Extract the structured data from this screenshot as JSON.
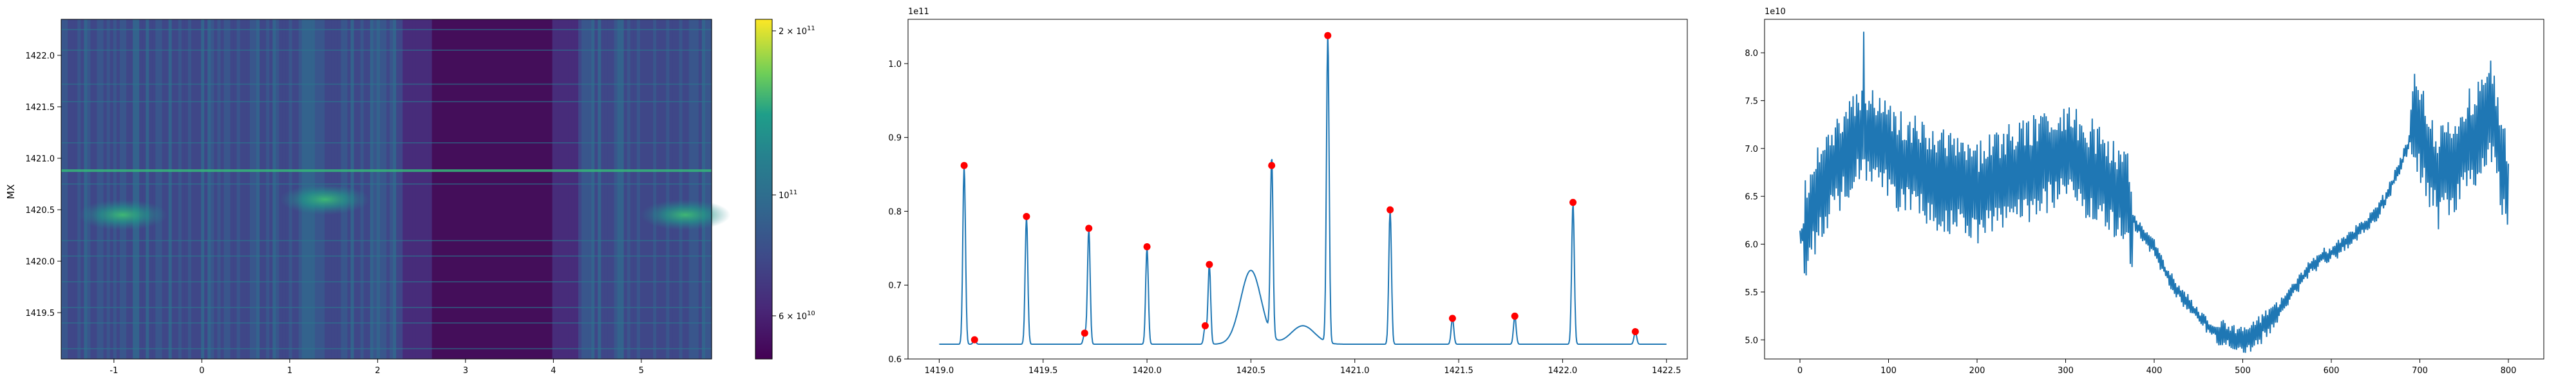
{
  "chart_data": [
    {
      "type": "heatmap",
      "ylabel": "MX",
      "xlim": [
        -1.6,
        5.8
      ],
      "ylim": [
        1419.05,
        1422.35
      ],
      "x_ticks": [
        "-1",
        "0",
        "1",
        "2",
        "3",
        "4",
        "5"
      ],
      "y_ticks": [
        "1419.5",
        "1420.0",
        "1420.5",
        "1421.0",
        "1421.5",
        "1422.0"
      ],
      "colormap": "viridis",
      "color_scale": "log",
      "colorbar_ticks": [
        "2 × 10",
        "10",
        "6 × 10"
      ],
      "colorbar_tick_exponents": [
        "11",
        "11",
        "10"
      ],
      "colorbar_range": [
        50000000000,
        210000000000
      ],
      "dark_band_x": [
        2.3,
        4.3
      ],
      "bright_spots": [
        {
          "x": -0.9,
          "y": 1420.45
        },
        {
          "x": 1.4,
          "y": 1420.6
        },
        {
          "x": 5.5,
          "y": 1420.45
        }
      ],
      "bright_row_y": 1420.88
    },
    {
      "type": "line",
      "offset_label": "1e11",
      "xlim": [
        1418.85,
        1422.6
      ],
      "ylim": [
        0.6,
        1.06
      ],
      "x_ticks": [
        "1419.0",
        "1419.5",
        "1420.0",
        "1420.5",
        "1421.0",
        "1421.5",
        "1422.0",
        "1422.5"
      ],
      "y_ticks": [
        "0.6",
        "0.7",
        "0.8",
        "0.9",
        "1.0"
      ],
      "line_color": "#1f77b4",
      "marker_color": "#ff0000",
      "baseline": 0.62,
      "peaks": [
        {
          "x": 1419.12,
          "y": 0.862
        },
        {
          "x": 1419.17,
          "y": 0.626
        },
        {
          "x": 1419.42,
          "y": 0.793
        },
        {
          "x": 1419.7,
          "y": 0.635
        },
        {
          "x": 1419.72,
          "y": 0.777
        },
        {
          "x": 1420.0,
          "y": 0.752
        },
        {
          "x": 1420.28,
          "y": 0.645
        },
        {
          "x": 1420.3,
          "y": 0.728
        },
        {
          "x": 1420.6,
          "y": 0.862
        },
        {
          "x": 1420.87,
          "y": 1.038
        },
        {
          "x": 1421.17,
          "y": 0.802
        },
        {
          "x": 1421.47,
          "y": 0.655
        },
        {
          "x": 1421.77,
          "y": 0.658
        },
        {
          "x": 1422.05,
          "y": 0.812
        },
        {
          "x": 1422.35,
          "y": 0.637
        }
      ],
      "bump": {
        "x": 1420.5,
        "y": 0.72
      }
    },
    {
      "type": "line",
      "offset_label": "1e10",
      "xlim": [
        -40,
        840
      ],
      "ylim": [
        4.8,
        8.35
      ],
      "x_ticks": [
        "0",
        "100",
        "200",
        "300",
        "400",
        "500",
        "600",
        "700",
        "800"
      ],
      "y_ticks": [
        "5.0",
        "5.5",
        "6.0",
        "6.5",
        "7.0",
        "7.5",
        "8.0"
      ],
      "line_color": "#1f77b4",
      "envelope": [
        [
          0,
          6.05
        ],
        [
          30,
          6.7
        ],
        [
          70,
          7.2
        ],
        [
          110,
          6.9
        ],
        [
          150,
          6.7
        ],
        [
          200,
          6.55
        ],
        [
          250,
          6.75
        ],
        [
          300,
          6.95
        ],
        [
          340,
          6.7
        ],
        [
          360,
          6.55
        ],
        [
          380,
          6.2
        ],
        [
          400,
          5.95
        ],
        [
          420,
          5.6
        ],
        [
          440,
          5.35
        ],
        [
          460,
          5.15
        ],
        [
          480,
          5.05
        ],
        [
          500,
          4.98
        ],
        [
          520,
          5.1
        ],
        [
          540,
          5.3
        ],
        [
          560,
          5.55
        ],
        [
          580,
          5.8
        ],
        [
          600,
          5.9
        ],
        [
          620,
          6.05
        ],
        [
          640,
          6.2
        ],
        [
          660,
          6.45
        ],
        [
          680,
          6.85
        ],
        [
          695,
          7.3
        ],
        [
          720,
          6.7
        ],
        [
          750,
          7.0
        ],
        [
          780,
          7.4
        ],
        [
          800,
          6.5
        ]
      ],
      "noisy_ranges": [
        [
          5,
          375
        ],
        [
          690,
          800
        ]
      ],
      "peak": {
        "x": 72,
        "y": 8.22
      }
    }
  ]
}
